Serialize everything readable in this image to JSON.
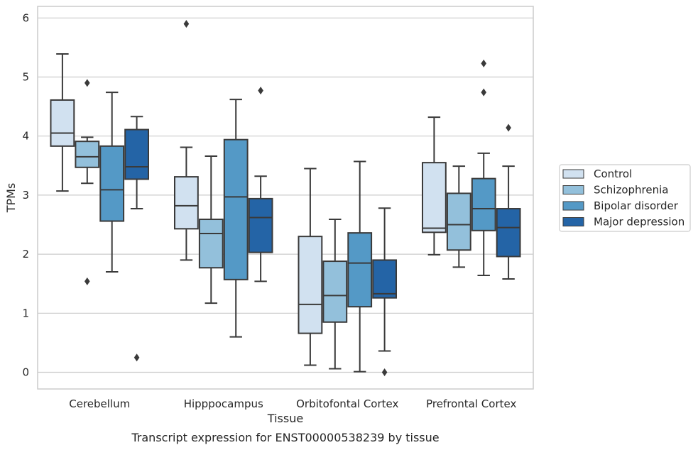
{
  "caption": "Transcript expression for ENST00000538239 by tissue",
  "chart_data": {
    "type": "box",
    "xlabel": "Tissue",
    "ylabel": "TPMs",
    "ylim": [
      -0.28,
      6.2
    ],
    "yticks": [
      0,
      1,
      2,
      3,
      4,
      5,
      6
    ],
    "grid": "horizontal",
    "legend_position": "right",
    "categories": [
      "Cerebellum",
      "Hipppocampus",
      "Orbitofontal Cortex",
      "Prefrontal Cortex"
    ],
    "series": [
      {
        "name": "Control",
        "color": "#d1e1f0",
        "boxes": [
          {
            "q1": 3.83,
            "median": 4.05,
            "q3": 4.61,
            "whisker_low": 3.07,
            "whisker_high": 5.39,
            "outliers": []
          },
          {
            "q1": 2.43,
            "median": 2.82,
            "q3": 3.31,
            "whisker_low": 1.9,
            "whisker_high": 3.81,
            "outliers": [
              5.9
            ]
          },
          {
            "q1": 0.66,
            "median": 1.15,
            "q3": 2.3,
            "whisker_low": 0.12,
            "whisker_high": 3.45,
            "outliers": []
          },
          {
            "q1": 2.37,
            "median": 2.44,
            "q3": 3.55,
            "whisker_low": 1.99,
            "whisker_high": 4.32,
            "outliers": []
          }
        ]
      },
      {
        "name": "Schizophrenia",
        "color": "#93c0db",
        "boxes": [
          {
            "q1": 3.47,
            "median": 3.65,
            "q3": 3.91,
            "whisker_low": 3.2,
            "whisker_high": 3.98,
            "outliers": [
              4.9,
              1.54
            ]
          },
          {
            "q1": 1.77,
            "median": 2.35,
            "q3": 2.59,
            "whisker_low": 1.17,
            "whisker_high": 3.66,
            "outliers": []
          },
          {
            "q1": 0.85,
            "median": 1.3,
            "q3": 1.88,
            "whisker_low": 0.06,
            "whisker_high": 2.59,
            "outliers": []
          },
          {
            "q1": 2.07,
            "median": 2.5,
            "q3": 3.03,
            "whisker_low": 1.78,
            "whisker_high": 3.49,
            "outliers": []
          }
        ]
      },
      {
        "name": "Bipolar disorder",
        "color": "#5499c6",
        "boxes": [
          {
            "q1": 2.56,
            "median": 3.09,
            "q3": 3.83,
            "whisker_low": 1.7,
            "whisker_high": 4.74,
            "outliers": []
          },
          {
            "q1": 1.57,
            "median": 2.97,
            "q3": 3.94,
            "whisker_low": 0.6,
            "whisker_high": 4.62,
            "outliers": []
          },
          {
            "q1": 1.11,
            "median": 1.85,
            "q3": 2.36,
            "whisker_low": 0.01,
            "whisker_high": 3.57,
            "outliers": []
          },
          {
            "q1": 2.4,
            "median": 2.77,
            "q3": 3.28,
            "whisker_low": 1.64,
            "whisker_high": 3.71,
            "outliers": [
              5.23,
              4.74
            ]
          }
        ]
      },
      {
        "name": "Major depression",
        "color": "#2464a6",
        "boxes": [
          {
            "q1": 3.27,
            "median": 3.48,
            "q3": 4.11,
            "whisker_low": 2.77,
            "whisker_high": 4.33,
            "outliers": [
              0.25
            ]
          },
          {
            "q1": 2.03,
            "median": 2.62,
            "q3": 2.94,
            "whisker_low": 1.54,
            "whisker_high": 3.32,
            "outliers": [
              4.77
            ]
          },
          {
            "q1": 1.26,
            "median": 1.33,
            "q3": 1.9,
            "whisker_low": 0.36,
            "whisker_high": 2.78,
            "outliers": [
              0.0
            ]
          },
          {
            "q1": 1.96,
            "median": 2.45,
            "q3": 2.77,
            "whisker_low": 1.58,
            "whisker_high": 3.49,
            "outliers": [
              4.14
            ]
          }
        ]
      }
    ]
  }
}
